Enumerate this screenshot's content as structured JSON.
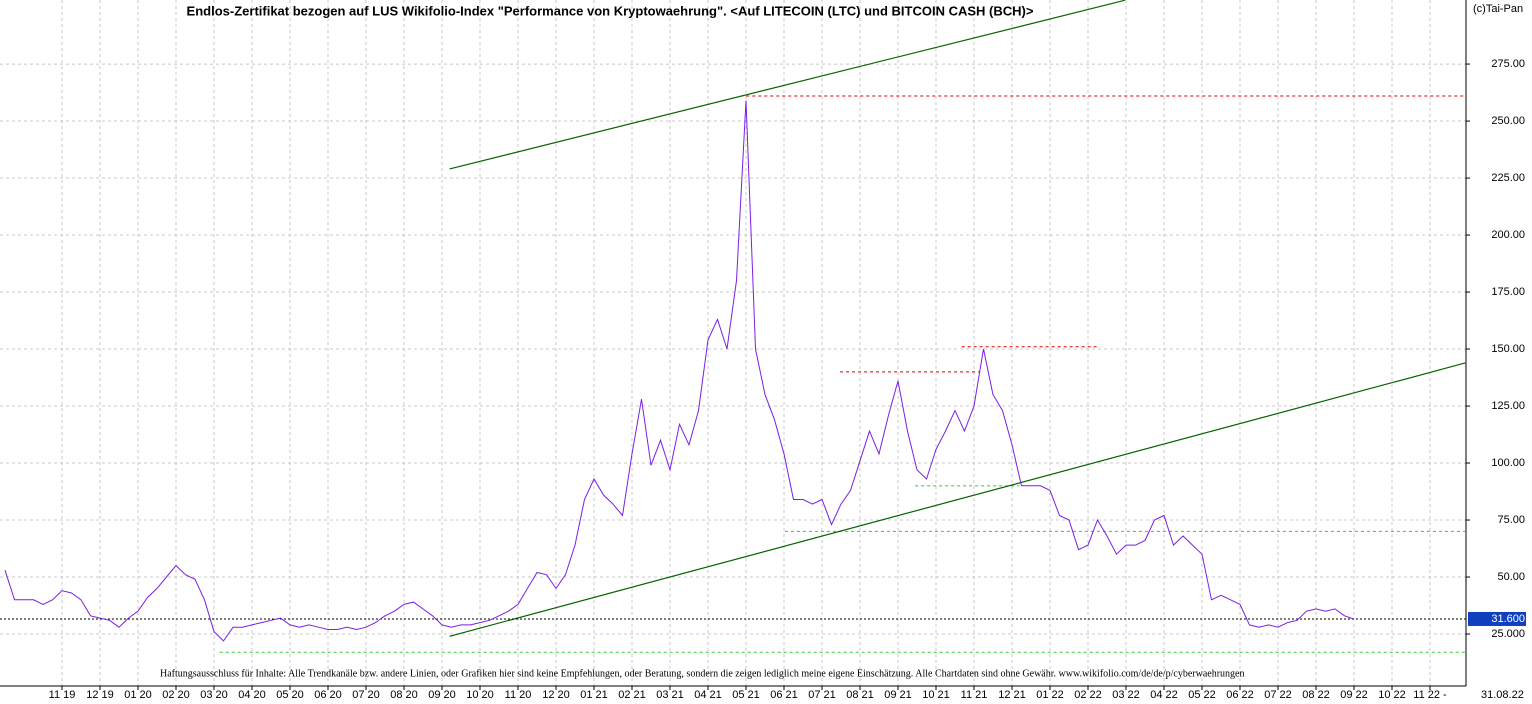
{
  "chart_data": {
    "type": "line",
    "title": "Endlos-Zertifikat bezogen auf LUS Wikifolio-Index \"Performance von Kryptowaehrung\". <Auf LITECOIN (LTC) und BITCOIN CASH (BCH)>",
    "copyright": "(c)Tai-Pan",
    "disclaimer": "Haftungsausschluss für Inhalte: Alle Trendkanäle bzw. andere Linien, oder Grafiken hier sind keine Empfehlungen, oder Beratung, sondern die zeigen lediglich meine eigene Einschätzung. Alle Chartdaten sind ohne Gewähr.  www.wikifolio.com/de/de/p/cyberwaehrungen",
    "last_date": "31.08.22",
    "categories": [
      null,
      null,
      null,
      null,
      null,
      null,
      "11 19",
      null,
      null,
      null,
      "12 19",
      null,
      null,
      null,
      "01 20",
      null,
      null,
      null,
      "02 20",
      null,
      null,
      null,
      "03 20",
      null,
      null,
      null,
      "04 20",
      null,
      null,
      null,
      "05 20",
      null,
      null,
      null,
      "06 20",
      null,
      null,
      null,
      "07 20",
      null,
      null,
      null,
      "08 20",
      null,
      null,
      null,
      "09 20",
      null,
      null,
      null,
      "10 20",
      null,
      null,
      null,
      "11 20",
      null,
      null,
      null,
      "12 20",
      null,
      null,
      null,
      "01 21",
      null,
      null,
      null,
      "02 21",
      null,
      null,
      null,
      "03 21",
      null,
      null,
      null,
      "04 21",
      null,
      null,
      null,
      "05 21",
      null,
      null,
      null,
      "06 21",
      null,
      null,
      null,
      "07 21",
      null,
      null,
      null,
      "08 21",
      null,
      null,
      null,
      "09 21",
      null,
      null,
      null,
      "10 21",
      null,
      null,
      null,
      "11 21",
      null,
      null,
      null,
      "12 21",
      null,
      null,
      null,
      "01 22",
      null,
      null,
      null,
      "02 22",
      null,
      null,
      null,
      "03 22",
      null,
      null,
      null,
      "04 22",
      null,
      null,
      null,
      "05 22",
      null,
      null,
      null,
      "06 22",
      null,
      null,
      null,
      "07 22",
      null,
      null,
      null,
      "08 22",
      null,
      null,
      null,
      "09 22",
      null,
      null,
      null,
      "10 22",
      null,
      null,
      null,
      "11 22 -",
      null,
      null,
      null
    ],
    "series": [
      {
        "color": "#7b1fe6",
        "values": [
          53,
          40,
          40,
          40,
          38,
          40,
          44,
          43,
          40,
          33,
          32,
          31,
          28,
          32,
          35,
          41,
          45,
          50,
          55,
          51,
          49,
          40,
          26,
          22,
          28,
          28,
          29,
          30,
          31,
          32,
          29,
          28,
          29,
          28,
          27,
          27,
          28,
          27,
          28,
          30,
          33,
          35,
          38,
          39,
          36,
          33,
          29,
          28,
          29,
          29,
          30,
          31,
          33,
          35,
          38,
          45,
          52,
          51,
          45,
          51,
          64,
          84,
          93,
          86,
          82,
          77,
          104,
          128,
          99,
          110,
          97,
          117,
          108,
          123,
          154,
          163,
          150,
          180,
          259,
          150,
          130,
          119,
          104,
          84,
          84,
          82,
          84,
          73,
          82,
          88,
          101,
          114,
          104,
          121,
          136,
          114,
          97,
          93,
          106,
          114,
          123,
          114,
          125,
          150,
          130,
          123,
          108,
          90,
          90,
          90,
          88,
          77,
          75,
          62,
          64,
          75,
          68,
          60,
          64,
          64,
          66,
          75,
          77,
          64,
          68,
          64,
          60,
          40,
          42,
          40,
          38,
          29,
          28,
          29,
          28,
          30,
          31,
          35,
          36,
          35,
          36,
          33,
          31.6,
          null,
          null,
          null,
          null,
          null,
          null,
          null,
          null,
          null,
          null,
          null
        ]
      }
    ],
    "current": {
      "value": 31.6,
      "label": "31.600"
    },
    "ylim": [
      2.2,
      303.1
    ],
    "yticks": [
      {
        "value": 25,
        "label": "25.000"
      },
      {
        "value": 50,
        "label": "50.00"
      },
      {
        "value": 75,
        "label": "75.00"
      },
      {
        "value": 100,
        "label": "100.00"
      },
      {
        "value": 125,
        "label": "125.00"
      },
      {
        "value": 150,
        "label": "150.00"
      },
      {
        "value": 175,
        "label": "175.00"
      },
      {
        "value": 200,
        "label": "200.00"
      },
      {
        "value": 225,
        "label": "225.00"
      },
      {
        "value": 250,
        "label": "250.00"
      },
      {
        "value": 275,
        "label": "275.00"
      }
    ],
    "grid": true,
    "trendlines": [
      {
        "color": "#006400",
        "x": [
          46.8,
          117.9
        ],
        "y": [
          229,
          303
        ]
      },
      {
        "color": "#006400",
        "x": [
          46.8,
          153.8
        ],
        "y": [
          24,
          144
        ]
      }
    ],
    "reference_lines": [
      {
        "value": 261,
        "from": 77.4,
        "to": 153.8,
        "color": "#e00000"
      },
      {
        "value": 140,
        "from": 87.9,
        "to": 102.6,
        "color": "#e00000"
      },
      {
        "value": 151,
        "from": 100.7,
        "to": 115.1,
        "color": "#e00000"
      },
      {
        "value": 90,
        "from": 95.8,
        "to": 106.8,
        "color": "#33cc33"
      },
      {
        "value": 70,
        "from": 82.1,
        "to": 153.8,
        "color": "#33cc33"
      },
      {
        "value": 17,
        "from": 22.6,
        "to": 153.8,
        "color": "#33cc33"
      }
    ]
  }
}
